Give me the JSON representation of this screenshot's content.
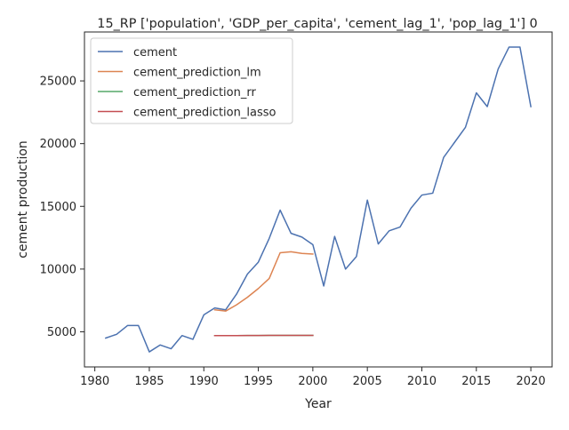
{
  "chart_data": {
    "type": "line",
    "title": "15_RP ['population', 'GDP_per_capita', 'cement_lag_1', 'pop_lag_1'] 0",
    "xlabel": "Year",
    "ylabel": "cement production",
    "xlim": [
      1979.05,
      2021.95
    ],
    "ylim": [
      2200,
      28900
    ],
    "xticks": [
      1980,
      1985,
      1990,
      1995,
      2000,
      2005,
      2010,
      2015,
      2020
    ],
    "xtick_labels": [
      "1980",
      "1985",
      "1990",
      "1995",
      "2000",
      "2005",
      "2010",
      "2015",
      "2020"
    ],
    "yticks": [
      5000,
      10000,
      15000,
      20000,
      25000
    ],
    "ytick_labels": [
      "5000",
      "10000",
      "15000",
      "20000",
      "25000"
    ],
    "grid": false,
    "legend_position": "top-left",
    "series": [
      {
        "name": "cement",
        "color": "#4c72b0",
        "x": [
          1981,
          1982,
          1983,
          1984,
          1985,
          1986,
          1987,
          1988,
          1989,
          1990,
          1991,
          1992,
          1993,
          1994,
          1995,
          1996,
          1997,
          1998,
          1999,
          2000,
          2001,
          2002,
          2003,
          2004,
          2005,
          2006,
          2007,
          2008,
          2009,
          2010,
          2011,
          2012,
          2013,
          2014,
          2015,
          2016,
          2017,
          2018,
          2019,
          2020
        ],
        "y": [
          4500,
          4800,
          5500,
          5500,
          3400,
          3950,
          3650,
          4700,
          4400,
          6350,
          6900,
          6750,
          8000,
          9600,
          10550,
          12450,
          14700,
          12850,
          12550,
          11950,
          8650,
          12600,
          10000,
          11000,
          15500,
          12000,
          13050,
          13350,
          14850,
          15900,
          16050,
          18900,
          20100,
          21300,
          24050,
          22950,
          25950,
          27700,
          27700,
          22950
        ]
      },
      {
        "name": "cement_prediction_lm",
        "color": "#dd8452",
        "x": [
          1991,
          1992,
          1993,
          1994,
          1995,
          1996,
          1997,
          1998,
          1999,
          2000
        ],
        "y": [
          6750,
          6650,
          7150,
          7750,
          8450,
          9250,
          11300,
          11380,
          11250,
          11200
        ]
      },
      {
        "name": "cement_prediction_rr",
        "color": "#55a868",
        "x": [
          1991,
          1992,
          1993,
          1994,
          1995,
          1996,
          1997,
          1998,
          1999,
          2000
        ],
        "y": [
          4700,
          4700,
          4700,
          4705,
          4705,
          4710,
          4715,
          4715,
          4715,
          4715
        ]
      },
      {
        "name": "cement_prediction_lasso",
        "color": "#c44e52",
        "x": [
          1991,
          1992,
          1993,
          1994,
          1995,
          1996,
          1997,
          1998,
          1999,
          2000
        ],
        "y": [
          4700,
          4700,
          4700,
          4705,
          4705,
          4710,
          4715,
          4715,
          4715,
          4715
        ]
      }
    ]
  }
}
